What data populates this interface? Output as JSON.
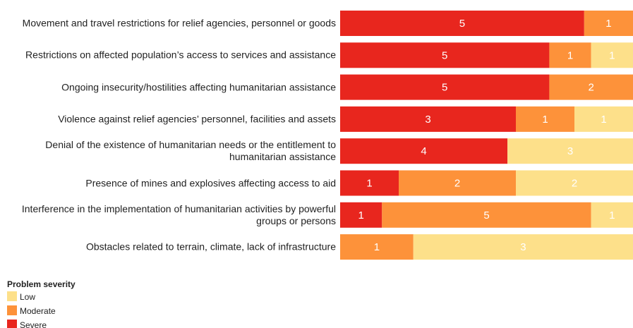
{
  "chart_data": {
    "type": "stacked_percent_bar",
    "categories": [
      "Movement and travel restrictions for relief agencies, personnel or goods",
      "Restrictions on affected population’s access to services and assistance",
      "Ongoing insecurity/hostilities affecting humanitarian assistance",
      "Violence against relief agencies’ personnel, facilities and assets",
      "Denial of the existence of humanitarian needs or the entitlement to humanitarian assistance",
      "Presence of mines and explosives affecting access to aid",
      "Interference in the implementation of humanitarian activities by powerful groups or persons",
      "Obstacles related to terrain, climate, lack of infrastructure"
    ],
    "series": [
      {
        "name": "Severe",
        "color": "#e8261e",
        "values": [
          5,
          5,
          5,
          3,
          4,
          1,
          1,
          0
        ]
      },
      {
        "name": "Moderate",
        "color": "#fd923a",
        "values": [
          1,
          1,
          2,
          1,
          0,
          2,
          5,
          1
        ]
      },
      {
        "name": "Low",
        "color": "#fde08a",
        "values": [
          0,
          1,
          0,
          1,
          3,
          2,
          1,
          3
        ]
      }
    ],
    "legend_title": "Problem severity",
    "legend": "bottom-left"
  }
}
